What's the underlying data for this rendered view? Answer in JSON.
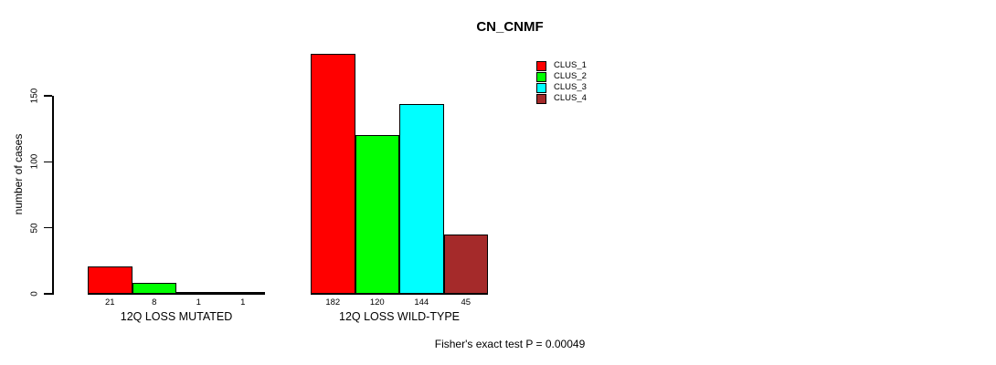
{
  "chart_data": {
    "type": "bar",
    "title": "CN_CNMF",
    "ylabel": "number of cases",
    "xlabel": "",
    "yticks": [
      0,
      50,
      100,
      150
    ],
    "ylim": [
      0,
      185
    ],
    "grid": false,
    "legend_position": "top-right",
    "categories": [
      "12Q LOSS MUTATED",
      "12Q LOSS WILD-TYPE"
    ],
    "series": [
      {
        "name": "CLUS_1",
        "color": "#ff0000",
        "values": [
          21,
          182
        ]
      },
      {
        "name": "CLUS_2",
        "color": "#00ff00",
        "values": [
          8,
          120
        ]
      },
      {
        "name": "CLUS_3",
        "color": "#00ffff",
        "values": [
          1,
          144
        ]
      },
      {
        "name": "CLUS_4",
        "color": "#a52a2a",
        "values": [
          1,
          45
        ]
      }
    ],
    "bar_value_labels": [
      [
        "21",
        "8",
        "1",
        "1"
      ],
      [
        "182",
        "120",
        "144",
        "45"
      ]
    ],
    "annotation": "Fisher's exact test P = 0.00049"
  }
}
